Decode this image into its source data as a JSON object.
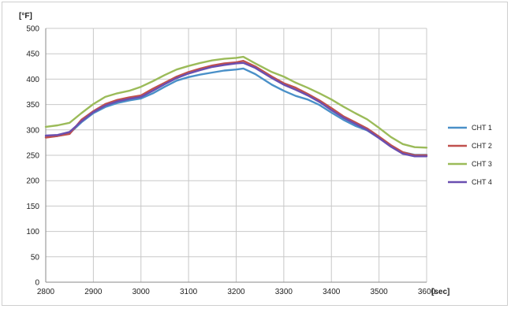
{
  "chart_data": {
    "type": "line",
    "title": "",
    "xlabel": "[sec]",
    "ylabel": "[°F]",
    "xlim": [
      2800,
      3600
    ],
    "ylim": [
      0,
      500
    ],
    "xticks": [
      2800,
      2900,
      3000,
      3100,
      3200,
      3300,
      3400,
      3500,
      3600
    ],
    "yticks": [
      0,
      50,
      100,
      150,
      200,
      250,
      300,
      350,
      400,
      450,
      500
    ],
    "grid": true,
    "legend_position": "right",
    "x": [
      2800,
      2825,
      2850,
      2875,
      2900,
      2925,
      2950,
      2975,
      3000,
      3025,
      3050,
      3075,
      3100,
      3125,
      3150,
      3175,
      3200,
      3215,
      3240,
      3275,
      3300,
      3325,
      3350,
      3375,
      3400,
      3425,
      3450,
      3475,
      3500,
      3525,
      3550,
      3575,
      3600
    ],
    "series": [
      {
        "name": "CHT 1",
        "color": "#4a90c8",
        "values": [
          286,
          288,
          293,
          315,
          333,
          345,
          353,
          358,
          362,
          372,
          385,
          397,
          404,
          409,
          413,
          417,
          419,
          421,
          410,
          389,
          377,
          367,
          360,
          349,
          334,
          320,
          308,
          299,
          284,
          268,
          256,
          251,
          251
        ]
      },
      {
        "name": "CHT 2",
        "color": "#c0504d",
        "values": [
          285,
          288,
          292,
          320,
          337,
          351,
          359,
          364,
          368,
          381,
          393,
          405,
          414,
          421,
          427,
          431,
          433,
          436,
          425,
          405,
          392,
          383,
          371,
          358,
          343,
          327,
          315,
          303,
          287,
          270,
          256,
          250,
          250
        ]
      },
      {
        "name": "CHT 3",
        "color": "#9bbb59",
        "values": [
          306,
          309,
          314,
          333,
          351,
          365,
          372,
          377,
          385,
          396,
          408,
          419,
          426,
          432,
          437,
          440,
          442,
          444,
          431,
          414,
          405,
          393,
          383,
          372,
          360,
          346,
          333,
          321,
          304,
          286,
          272,
          266,
          265
        ]
      },
      {
        "name": "CHT 4",
        "color": "#6a4fb0",
        "values": [
          289,
          290,
          296,
          317,
          335,
          348,
          356,
          361,
          365,
          377,
          390,
          402,
          411,
          418,
          424,
          428,
          431,
          432,
          422,
          402,
          389,
          379,
          368,
          355,
          339,
          324,
          312,
          300,
          284,
          267,
          253,
          248,
          248
        ]
      }
    ]
  }
}
